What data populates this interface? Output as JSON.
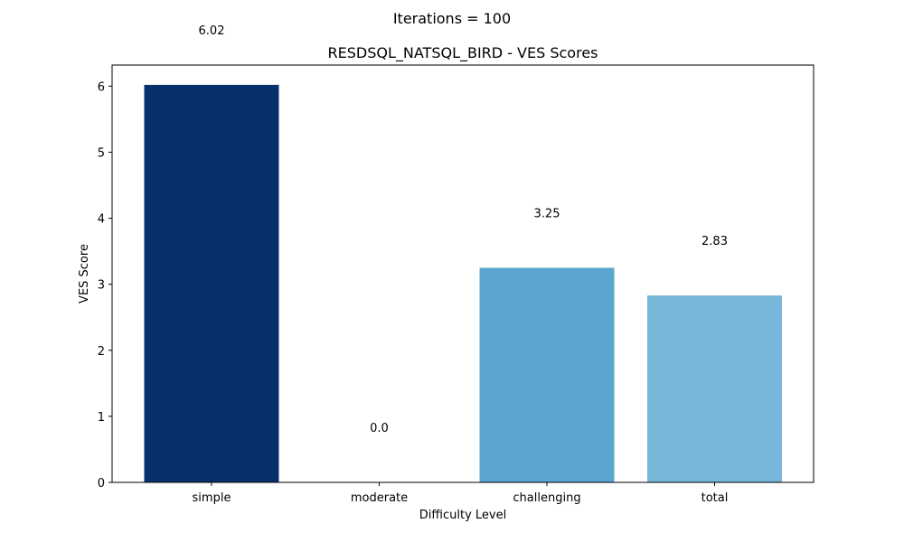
{
  "figure": {
    "suptitle": "Iterations = 100"
  },
  "chart_data": {
    "type": "bar",
    "title": "RESDSQL_NATSQL_BIRD - VES Scores",
    "xlabel": "Difficulty Level",
    "ylabel": "VES Score",
    "categories": [
      "simple",
      "moderate",
      "challenging",
      "total"
    ],
    "values": [
      6.02,
      0.0,
      3.25,
      2.83
    ],
    "value_labels": [
      "6.02",
      "0.0",
      "3.25",
      "2.83"
    ],
    "colors": [
      "#08306b",
      "#2171b5",
      "#5ba6d1",
      "#77b5d9"
    ],
    "yticks": [
      0,
      1,
      2,
      3,
      4,
      5,
      6
    ],
    "ylim": [
      0,
      6.32
    ],
    "grid": false,
    "legend": "none"
  }
}
